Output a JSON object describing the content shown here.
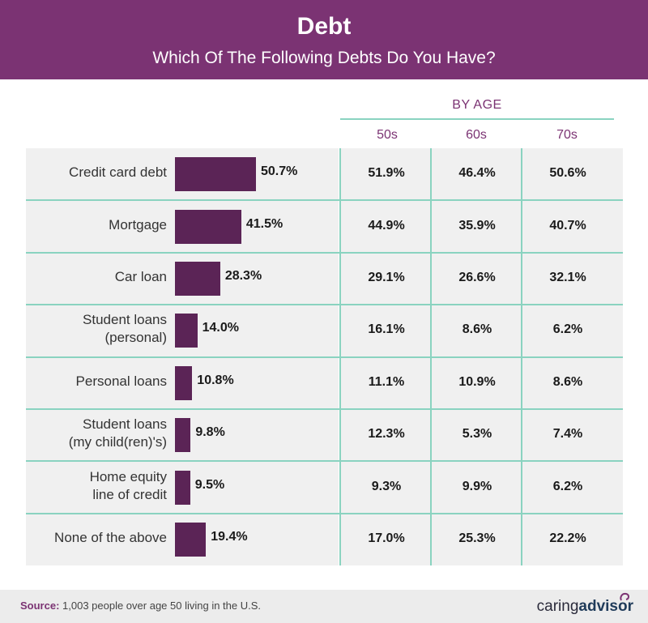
{
  "header": {
    "title": "Debt",
    "subtitle": "Which Of The Following Debts Do You Have?"
  },
  "table": {
    "group_label": "BY AGE",
    "columns": [
      "50s",
      "60s",
      "70s"
    ]
  },
  "chart_data": {
    "type": "bar",
    "categories": [
      "Credit card debt",
      "Mortgage",
      "Car loan",
      "Student loans (personal)",
      "Personal loans",
      "Student loans (my child(ren)'s)",
      "Home equity line of credit",
      "None of the above"
    ],
    "category_lines": [
      [
        "Credit card debt"
      ],
      [
        "Mortgage"
      ],
      [
        "Car loan"
      ],
      [
        "Student loans",
        "(personal)"
      ],
      [
        "Personal loans"
      ],
      [
        "Student loans",
        "(my child(ren)'s)"
      ],
      [
        "Home equity",
        "line of credit"
      ],
      [
        "None of the above"
      ]
    ],
    "values": [
      50.7,
      41.5,
      28.3,
      14.0,
      10.8,
      9.8,
      9.5,
      19.4
    ],
    "value_labels": [
      "50.7%",
      "41.5%",
      "28.3%",
      "14.0%",
      "10.8%",
      "9.8%",
      "9.5%",
      "19.4%"
    ],
    "by_age": [
      [
        "51.9%",
        "46.4%",
        "50.6%"
      ],
      [
        "44.9%",
        "35.9%",
        "40.7%"
      ],
      [
        "29.1%",
        "26.6%",
        "32.1%"
      ],
      [
        "16.1%",
        "8.6%",
        "6.2%"
      ],
      [
        "11.1%",
        "10.9%",
        "8.6%"
      ],
      [
        "12.3%",
        "5.3%",
        "7.4%"
      ],
      [
        "9.3%",
        "9.9%",
        "6.2%"
      ],
      [
        "17.0%",
        "25.3%",
        "22.2%"
      ]
    ],
    "colors": {
      "bar": "#5b2456",
      "accent": "#7b3373",
      "rule": "#8ad3c0"
    }
  },
  "footer": {
    "source_label": "Source:",
    "source_text": " 1,003 people over age 50 living in the U.S.",
    "logo_light": "caring",
    "logo_bold": "advisor"
  }
}
